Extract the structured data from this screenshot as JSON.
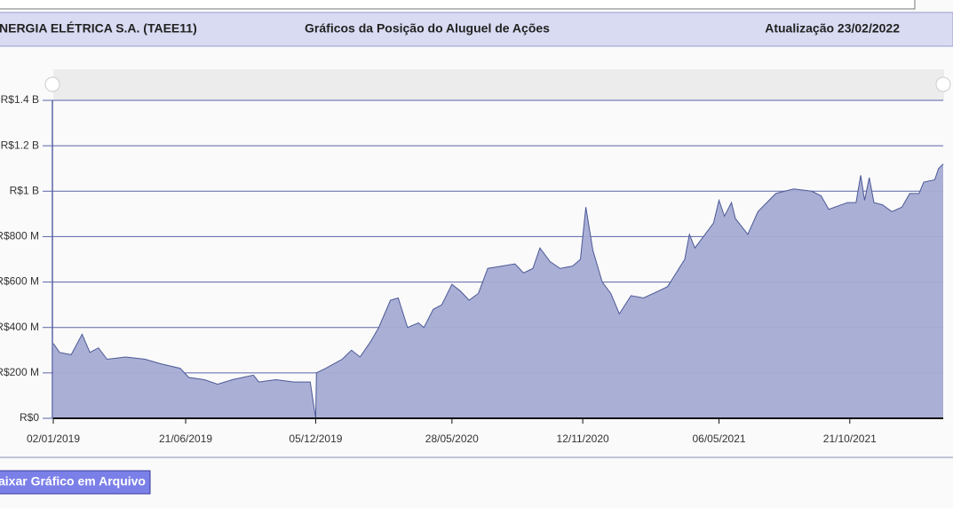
{
  "header": {
    "company": "NERGIA ELÉTRICA S.A. (TAEE11)",
    "title": "Gráficos da Posição do Aluguel de Ações",
    "update": "Atualização 23/02/2022"
  },
  "button": "aixar Gráfico em Arquivo",
  "chart_data": {
    "type": "area",
    "x": [
      "02/01/2019",
      "10/01/2019",
      "25/01/2019",
      "08/02/2019",
      "18/02/2019",
      "01/03/2019",
      "12/03/2019",
      "05/04/2019",
      "30/04/2019",
      "20/05/2019",
      "14/06/2019",
      "25/06/2019",
      "15/07/2019",
      "01/08/2019",
      "20/08/2019",
      "16/09/2019",
      "23/09/2019",
      "15/10/2019",
      "07/11/2019",
      "28/11/2019",
      "05/12/2019",
      "06/12/2019",
      "18/12/2019",
      "08/01/2020",
      "20/01/2020",
      "31/01/2020",
      "14/02/2020",
      "24/02/2020",
      "10/03/2020",
      "20/03/2020",
      "01/04/2020",
      "15/04/2020",
      "22/04/2020",
      "04/05/2020",
      "15/05/2020",
      "28/05/2020",
      "08/06/2020",
      "19/06/2020",
      "01/07/2020",
      "13/07/2020",
      "31/07/2020",
      "17/08/2020",
      "28/08/2020",
      "09/09/2020",
      "18/09/2020",
      "01/10/2020",
      "14/10/2020",
      "30/10/2020",
      "09/11/2020",
      "16/11/2020",
      "25/11/2020",
      "07/12/2020",
      "18/12/2020",
      "29/12/2020",
      "13/01/2021",
      "29/01/2021",
      "17/02/2021",
      "01/03/2021",
      "12/03/2021",
      "23/03/2021",
      "29/03/2021",
      "05/04/2021",
      "16/04/2021",
      "29/04/2021",
      "06/05/2021",
      "13/05/2021",
      "22/05/2021",
      "27/05/2021",
      "12/06/2021",
      "25/06/2021",
      "18/07/2021",
      "10/08/2021",
      "02/09/2021",
      "14/09/2021",
      "24/09/2021",
      "18/10/2021",
      "29/10/2021",
      "04/11/2021",
      "09/11/2021",
      "15/11/2021",
      "21/11/2021",
      "02/12/2021",
      "14/12/2021",
      "27/12/2021",
      "06/01/2022",
      "18/01/2022",
      "24/01/2022",
      "07/02/2022",
      "12/02/2022",
      "18/02/2022"
    ],
    "series": [
      {
        "color": "#a5acd3",
        "values": [
          330000000,
          290000000,
          280000000,
          370000000,
          290000000,
          310000000,
          260000000,
          270000000,
          260000000,
          240000000,
          220000000,
          180000000,
          170000000,
          150000000,
          170000000,
          190000000,
          160000000,
          170000000,
          160000000,
          160000000,
          0,
          200000000,
          220000000,
          260000000,
          300000000,
          270000000,
          340000000,
          400000000,
          520000000,
          530000000,
          400000000,
          420000000,
          400000000,
          480000000,
          500000000,
          590000000,
          560000000,
          520000000,
          550000000,
          660000000,
          670000000,
          680000000,
          640000000,
          660000000,
          750000000,
          690000000,
          660000000,
          670000000,
          700000000,
          930000000,
          740000000,
          600000000,
          550000000,
          460000000,
          540000000,
          530000000,
          560000000,
          580000000,
          640000000,
          700000000,
          810000000,
          750000000,
          800000000,
          860000000,
          960000000,
          890000000,
          950000000,
          880000000,
          810000000,
          910000000,
          990000000,
          1010000000,
          1000000000,
          980000000,
          920000000,
          950000000,
          950000000,
          1070000000,
          960000000,
          1060000000,
          950000000,
          940000000,
          910000000,
          930000000,
          990000000,
          990000000,
          1040000000,
          1050000000,
          1100000000,
          1120000000
        ]
      }
    ],
    "xlim": [
      "02/01/2019",
      "18/02/2022"
    ],
    "xticks": [
      "02/01/2019",
      "21/06/2019",
      "05/12/2019",
      "28/05/2020",
      "12/11/2020",
      "06/05/2021",
      "21/10/2021"
    ],
    "ylim": [
      0,
      1400000000
    ],
    "yticks": [
      {
        "value": 0,
        "label": "R$0"
      },
      {
        "value": 200000000,
        "label": "R$200 M"
      },
      {
        "value": 400000000,
        "label": "R$400 M"
      },
      {
        "value": 600000000,
        "label": "R$600 M"
      },
      {
        "value": 800000000,
        "label": "R$800 M"
      },
      {
        "value": 1000000000,
        "label": "R$1 B"
      },
      {
        "value": 1200000000,
        "label": "R$1.2 B"
      },
      {
        "value": 1400000000,
        "label": "R$1.4 B"
      }
    ],
    "grid": true
  }
}
